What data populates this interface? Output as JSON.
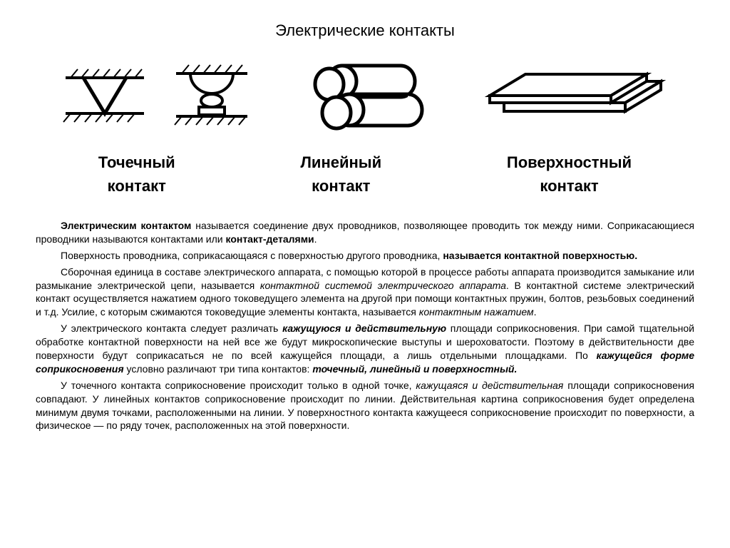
{
  "title": "Электрические контакты",
  "labels": {
    "point": "Точечный\nконтакт",
    "linear": "Линейный\nконтакт",
    "surface": "Поверхностный\nконтакт"
  },
  "paragraphs": {
    "p1_lead": "Электрическим контактом",
    "p1_rest": " называется соединение двух проводников, позволяющее проводить ток между ними. Соприкасающиеся проводники называются контактами или ",
    "p1_term": "контакт-деталями",
    "p1_end": ".",
    "p2_a": "Поверхность проводника, соприкасающаяся с поверхностью другого проводника, ",
    "p2_b": "называется контактной поверхностью.",
    "p3_a": "Сборочная единица в составе электрического аппарата, с помощью которой в процессе работы аппарата производится замыкание или размыкание электрической цепи, называется ",
    "p3_b": "контактной системой электрического аппарата",
    "p3_c": ". В контактной системе электрический контакт осуществляется нажатием одного токоведущего элемента на другой при помощи контактных пружин, болтов, резьбовых соединений и т.д. Усилие, с которым сжимаются токоведущие элементы контакта, называется ",
    "p3_d": "контактным нажатием",
    "p3_e": ".",
    "p4_a": "У электрического контакта следует различать ",
    "p4_b": "кажущуюся и действительную",
    "p4_c": " площади соприкосновения. При самой тщательной обработке контактной поверхности на ней все же будут микроскопические выступы и шероховатости. Поэтому в действительности две поверхности будут соприкасаться не по всей кажущейся площади, а лишь отдельными площадками. По ",
    "p4_d": "кажущейся форме соприкосновения",
    "p4_e": " условно различают три типа контактов: ",
    "p4_f": "точечный, линейный и поверхностный.",
    "p5_a": "У точечного контакта соприкосновение происходит только в одной точке, ",
    "p5_b": "кажущаяся и действительная",
    "p5_c": " площади соприкосновения совпадают. У линейных контактов соприкосновение происходит по линии. Действительная картина соприкосновения будет определена минимум двумя точками, расположенными на линии. У поверхностного контакта кажущееся соприкосновение происходит по поверхности, а физическое — по ряду точек, расположенных на этой поверхности."
  },
  "style": {
    "stroke": "#000000",
    "stroke_width_thick": 5,
    "stroke_width_med": 4,
    "stroke_width_thin": 2,
    "background": "#ffffff"
  }
}
